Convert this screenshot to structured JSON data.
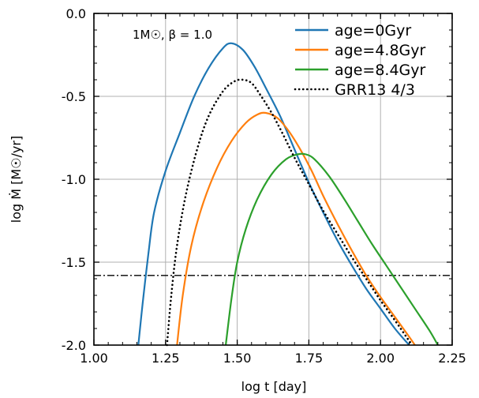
{
  "chart_data": {
    "type": "line",
    "xlabel": "log t [day]",
    "ylabel": "log Ṁ [M☉/yr]",
    "xlim": [
      1.0,
      2.25
    ],
    "ylim": [
      -2.0,
      0.0
    ],
    "xticks": [
      1.0,
      1.25,
      1.5,
      1.75,
      2.0,
      2.25
    ],
    "xtick_labels": [
      "1.00",
      "1.25",
      "1.50",
      "1.75",
      "2.00",
      "2.25"
    ],
    "yticks": [
      0.0,
      -0.5,
      -1.0,
      -1.5,
      -2.0
    ],
    "ytick_labels": [
      "0.0",
      "-0.5",
      "-1.0",
      "-1.5",
      "-2.0"
    ],
    "grid": true,
    "legend_position": "top-right",
    "annotation": "1M☉, β = 1.0",
    "hline": {
      "y": -1.58,
      "style": "dashdot",
      "color": "#000000"
    },
    "series": [
      {
        "name": "age=0Gyr",
        "color": "#1f77b4",
        "style": "solid",
        "x": [
          1.155,
          1.17,
          1.19,
          1.21,
          1.25,
          1.3,
          1.35,
          1.4,
          1.45,
          1.48,
          1.52,
          1.56,
          1.6,
          1.65,
          1.7,
          1.75,
          1.8,
          1.85,
          1.9,
          1.95,
          2.0,
          2.05,
          2.1
        ],
        "y": [
          -2.0,
          -1.75,
          -1.45,
          -1.2,
          -0.95,
          -0.72,
          -0.5,
          -0.33,
          -0.21,
          -0.18,
          -0.22,
          -0.32,
          -0.45,
          -0.62,
          -0.82,
          -1.02,
          -1.2,
          -1.37,
          -1.52,
          -1.66,
          -1.78,
          -1.9,
          -2.0
        ]
      },
      {
        "name": "age=4.8Gyr",
        "color": "#ff7f0e",
        "style": "solid",
        "x": [
          1.29,
          1.31,
          1.34,
          1.38,
          1.43,
          1.48,
          1.53,
          1.57,
          1.6,
          1.64,
          1.68,
          1.72,
          1.76,
          1.8,
          1.85,
          1.9,
          1.95,
          2.0,
          2.05,
          2.1,
          2.12
        ],
        "y": [
          -2.0,
          -1.7,
          -1.4,
          -1.15,
          -0.93,
          -0.77,
          -0.66,
          -0.61,
          -0.6,
          -0.63,
          -0.71,
          -0.82,
          -0.95,
          -1.1,
          -1.27,
          -1.43,
          -1.58,
          -1.71,
          -1.83,
          -1.95,
          -2.0
        ]
      },
      {
        "name": "age=8.4Gyr",
        "color": "#2ca02c",
        "style": "solid",
        "x": [
          1.46,
          1.48,
          1.5,
          1.53,
          1.57,
          1.62,
          1.67,
          1.71,
          1.74,
          1.77,
          1.82,
          1.87,
          1.92,
          1.97,
          2.02,
          2.07,
          2.12,
          2.17,
          2.2
        ],
        "y": [
          -2.0,
          -1.72,
          -1.5,
          -1.3,
          -1.12,
          -0.97,
          -0.88,
          -0.85,
          -0.85,
          -0.88,
          -0.98,
          -1.11,
          -1.25,
          -1.39,
          -1.52,
          -1.65,
          -1.78,
          -1.91,
          -2.0
        ]
      },
      {
        "name": "GRR13 4/3",
        "color": "#000000",
        "style": "dotted",
        "x": [
          1.255,
          1.27,
          1.29,
          1.32,
          1.36,
          1.4,
          1.45,
          1.49,
          1.52,
          1.55,
          1.58,
          1.62,
          1.66,
          1.7,
          1.75,
          1.8,
          1.85,
          1.9,
          1.95,
          2.0,
          2.05,
          2.09,
          2.11
        ],
        "y": [
          -2.0,
          -1.7,
          -1.4,
          -1.1,
          -0.82,
          -0.62,
          -0.47,
          -0.41,
          -0.4,
          -0.42,
          -0.49,
          -0.6,
          -0.73,
          -0.87,
          -1.03,
          -1.19,
          -1.33,
          -1.47,
          -1.6,
          -1.73,
          -1.85,
          -1.95,
          -2.0
        ]
      }
    ]
  }
}
